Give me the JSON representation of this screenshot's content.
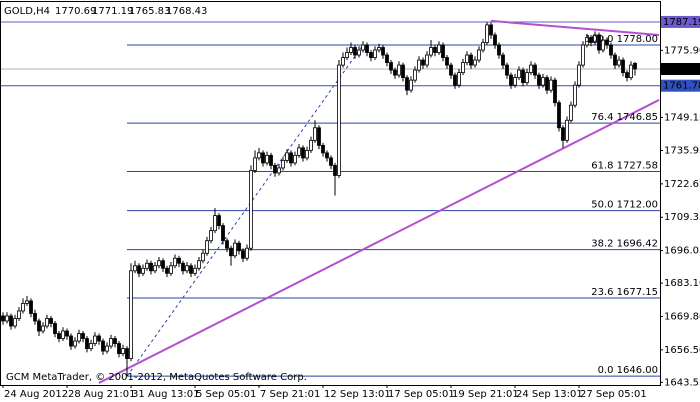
{
  "chart_data": {
    "type": "candlestick",
    "symbol": "GOLD,H4",
    "footer": "GCM MetaTrader, © 2001-2012, MetaQuotes Software Corp.",
    "bull_color": "#ffffff",
    "bear_color": "#000000",
    "xlim": [
      -0.75,
      164.25
    ],
    "ylim": [
      1642.48,
      1795.14
    ],
    "yticks": [
      {
        "value": 1775.9,
        "label": "1775.90"
      },
      1749.15,
      1735.95,
      1722.65,
      1709.35,
      1696.05,
      {
        "value": 1683.1,
        "label": "1683.10"
      },
      {
        "value": 1669.8,
        "label": "1669.80"
      },
      {
        "value": 1656.5,
        "label": "1656.50"
      },
      1643.55
    ],
    "hlines": [
      {
        "value": 1787.19,
        "color": "#6a5acd",
        "label_color": "#6a5acd",
        "text_color": "#ffffff"
      },
      {
        "value": 1768.43,
        "color": "#b0b0b0",
        "label_color": "#000000",
        "text_color": "#ffffff"
      },
      {
        "value": 1761.78,
        "color": "#3050c0",
        "label_color": "#3050c0",
        "text_color": "#ffffff"
      }
    ],
    "fibonacci": {
      "color": "#2a44a8",
      "anchors": [
        [
          31,
          1646
        ],
        [
          90,
          1778
        ]
      ],
      "levels": [
        {
          "label": "100.0 1778.00",
          "value": 1778
        },
        {
          "label": "76.4 1746.85",
          "value": 1746.85
        },
        {
          "label": "61.8 1727.58",
          "value": 1727.58
        },
        {
          "label": "50.0 1712.00",
          "value": 1712
        },
        {
          "label": "38.2 1696.42",
          "value": 1696.42
        },
        {
          "label": "23.6 1677.15",
          "value": 1677.15
        },
        {
          "label": "0.0 1646.00",
          "value": 1646
        }
      ]
    },
    "trendlines": [
      {
        "color": "#b44fd0",
        "points": [
          [
            24,
            1643.3
          ],
          [
            164,
            1756.1
          ]
        ]
      },
      {
        "color": "#b44fd0",
        "points": [
          [
            122,
            1787.6
          ],
          [
            164,
            1782
          ]
        ]
      }
    ],
    "categories": [
      "24 Aug 2012",
      null,
      null,
      null,
      null,
      null,
      null,
      null,
      null,
      null,
      null,
      null,
      null,
      null,
      null,
      null,
      "28 Aug 21:01",
      null,
      null,
      null,
      null,
      null,
      null,
      null,
      null,
      null,
      null,
      null,
      null,
      null,
      null,
      null,
      "31 Aug 13:01",
      null,
      null,
      null,
      null,
      null,
      null,
      null,
      null,
      null,
      null,
      null,
      null,
      null,
      null,
      null,
      "5 Sep 05:01",
      null,
      null,
      null,
      null,
      null,
      null,
      null,
      null,
      null,
      null,
      null,
      null,
      null,
      null,
      null,
      "7 Sep 21:01",
      null,
      null,
      null,
      null,
      null,
      null,
      null,
      null,
      null,
      null,
      null,
      null,
      null,
      null,
      null,
      "12 Sep 13:01",
      null,
      null,
      null,
      null,
      null,
      null,
      null,
      null,
      null,
      null,
      null,
      null,
      null,
      null,
      null,
      "17 Sep 05:01",
      null,
      null,
      null,
      null,
      null,
      null,
      null,
      null,
      null,
      null,
      null,
      null,
      null,
      null,
      null,
      "19 Sep 21:01",
      null,
      null,
      null,
      null,
      null,
      null,
      null,
      null,
      null,
      null,
      null,
      null,
      null,
      null,
      null,
      "24 Sep 13:01",
      null,
      null,
      null,
      null,
      null,
      null,
      null,
      null,
      null,
      null,
      null,
      null,
      null,
      null,
      null,
      "27 Sep 05:01",
      null,
      null,
      null,
      null,
      null,
      null,
      null,
      null,
      null,
      null,
      null,
      null,
      null,
      null
    ],
    "candles": [
      [
        1670,
        1671.5,
        1666.5,
        1668
      ],
      [
        1668,
        1671.5,
        1667,
        1670
      ],
      [
        1670,
        1671,
        1664.5,
        1666
      ],
      [
        1666,
        1670.5,
        1665,
        1669
      ],
      [
        1669,
        1673.5,
        1668,
        1672
      ],
      [
        1672,
        1677,
        1671,
        1675
      ],
      [
        1675,
        1678,
        1674,
        1676
      ],
      [
        1676,
        1677,
        1669.5,
        1671
      ],
      [
        1671,
        1672.5,
        1666.5,
        1668
      ],
      [
        1668,
        1669,
        1662,
        1664
      ],
      [
        1664,
        1667.5,
        1663,
        1666
      ],
      [
        1666,
        1670.5,
        1665,
        1669
      ],
      [
        1669,
        1670,
        1665.5,
        1667
      ],
      [
        1667,
        1668,
        1661.5,
        1663
      ],
      [
        1663,
        1664,
        1659.5,
        1661
      ],
      [
        1661,
        1665.5,
        1660,
        1664
      ],
      [
        1664,
        1665,
        1660.5,
        1662
      ],
      [
        1662,
        1663,
        1656.5,
        1658
      ],
      [
        1658,
        1661.5,
        1657,
        1660
      ],
      [
        1660,
        1664.5,
        1659,
        1663
      ],
      [
        1663,
        1664,
        1659.5,
        1661
      ],
      [
        1661,
        1662,
        1655.5,
        1657
      ],
      [
        1657,
        1660.5,
        1656,
        1659
      ],
      [
        1659,
        1663.5,
        1658,
        1662
      ],
      [
        1662,
        1663,
        1658.5,
        1660
      ],
      [
        1660,
        1661,
        1654.5,
        1656
      ],
      [
        1656,
        1659.5,
        1655,
        1658
      ],
      [
        1658,
        1662.5,
        1657,
        1661
      ],
      [
        1661,
        1662,
        1657.5,
        1659
      ],
      [
        1659,
        1660,
        1653.5,
        1655
      ],
      [
        1655,
        1658.5,
        1654,
        1657
      ],
      [
        1657,
        1658,
        1646,
        1653
      ],
      [
        1653,
        1691,
        1652,
        1688
      ],
      [
        1688,
        1692,
        1687,
        1690
      ],
      [
        1690,
        1691,
        1685.5,
        1687
      ],
      [
        1687,
        1690.5,
        1686,
        1689
      ],
      [
        1689,
        1692.5,
        1688,
        1691
      ],
      [
        1691,
        1692,
        1686.5,
        1688
      ],
      [
        1688,
        1691.5,
        1687,
        1690
      ],
      [
        1690,
        1693.5,
        1689,
        1692
      ],
      [
        1692,
        1693,
        1687.5,
        1689
      ],
      [
        1689,
        1690,
        1685.5,
        1687
      ],
      [
        1687,
        1691.5,
        1686,
        1690
      ],
      [
        1690,
        1694.5,
        1689,
        1693
      ],
      [
        1693,
        1694,
        1689.5,
        1691
      ],
      [
        1691,
        1692,
        1686.5,
        1688
      ],
      [
        1688,
        1691.5,
        1687,
        1690
      ],
      [
        1690,
        1691,
        1685.5,
        1687
      ],
      [
        1687,
        1690.5,
        1686,
        1689
      ],
      [
        1689,
        1693.5,
        1688,
        1692
      ],
      [
        1692,
        1696.5,
        1691,
        1695
      ],
      [
        1695,
        1701.5,
        1694,
        1700
      ],
      [
        1700,
        1705.5,
        1699,
        1704
      ],
      [
        1704,
        1713,
        1703,
        1710
      ],
      [
        1710,
        1711,
        1704.5,
        1706
      ],
      [
        1706,
        1707,
        1698.5,
        1700
      ],
      [
        1700,
        1701,
        1695.5,
        1697
      ],
      [
        1697,
        1698,
        1690,
        1694
      ],
      [
        1694,
        1700.5,
        1693,
        1699
      ],
      [
        1699,
        1700,
        1694.5,
        1696
      ],
      [
        1696,
        1697,
        1691.5,
        1693
      ],
      [
        1693,
        1698.5,
        1692,
        1697
      ],
      [
        1697,
        1730,
        1696,
        1728
      ],
      [
        1728,
        1736,
        1727,
        1733
      ],
      [
        1733,
        1737,
        1732,
        1735
      ],
      [
        1735,
        1736,
        1729.5,
        1731
      ],
      [
        1731,
        1735.5,
        1730,
        1734
      ],
      [
        1734,
        1735,
        1728.5,
        1730
      ],
      [
        1730,
        1731,
        1725.5,
        1727
      ],
      [
        1727,
        1730.5,
        1726,
        1729
      ],
      [
        1729,
        1733.5,
        1728,
        1732
      ],
      [
        1732,
        1736.5,
        1731,
        1735
      ],
      [
        1735,
        1736,
        1729.5,
        1731
      ],
      [
        1731,
        1735.5,
        1730,
        1734
      ],
      [
        1734,
        1738.5,
        1733,
        1737
      ],
      [
        1737,
        1738,
        1731.5,
        1733
      ],
      [
        1733,
        1737.5,
        1732,
        1736
      ],
      [
        1736,
        1741.5,
        1735,
        1740
      ],
      [
        1740,
        1748,
        1739,
        1745
      ],
      [
        1745,
        1746,
        1736.5,
        1738
      ],
      [
        1738,
        1739,
        1733.5,
        1735
      ],
      [
        1735,
        1736,
        1731.5,
        1733
      ],
      [
        1733,
        1734,
        1728.5,
        1730
      ],
      [
        1730,
        1731,
        1718,
        1726
      ],
      [
        1726,
        1772,
        1725,
        1770
      ],
      [
        1770,
        1775,
        1769,
        1773
      ],
      [
        1773,
        1777,
        1772,
        1775
      ],
      [
        1775,
        1779,
        1774,
        1777
      ],
      [
        1777,
        1778,
        1772.5,
        1774
      ],
      [
        1774,
        1777.5,
        1773,
        1776
      ],
      [
        1776,
        1779.5,
        1775,
        1778
      ],
      [
        1778,
        1779,
        1773.5,
        1775
      ],
      [
        1775,
        1776,
        1771.5,
        1773
      ],
      [
        1773,
        1777.5,
        1772,
        1776
      ],
      [
        1776,
        1778.5,
        1775,
        1777
      ],
      [
        1777,
        1778,
        1772.5,
        1774
      ],
      [
        1774,
        1775,
        1769.5,
        1771
      ],
      [
        1771,
        1772,
        1766.5,
        1768
      ],
      [
        1768,
        1769,
        1764.5,
        1766
      ],
      [
        1766,
        1771.5,
        1765,
        1770
      ],
      [
        1770,
        1771,
        1763.5,
        1765
      ],
      [
        1765,
        1766,
        1758,
        1760
      ],
      [
        1760,
        1765.5,
        1759,
        1764
      ],
      [
        1764,
        1769.5,
        1763,
        1768
      ],
      [
        1768,
        1773.5,
        1767,
        1772
      ],
      [
        1772,
        1773,
        1768.5,
        1770
      ],
      [
        1770,
        1775.5,
        1769,
        1774
      ],
      [
        1774,
        1780,
        1773,
        1777
      ],
      [
        1777,
        1778,
        1773.5,
        1775
      ],
      [
        1775,
        1779.5,
        1774,
        1778
      ],
      [
        1778,
        1779,
        1771.5,
        1773
      ],
      [
        1773,
        1774,
        1768.5,
        1770
      ],
      [
        1770,
        1771,
        1764.5,
        1766
      ],
      [
        1766,
        1767,
        1760.5,
        1762
      ],
      [
        1762,
        1768.5,
        1761,
        1767
      ],
      [
        1767,
        1772.5,
        1766,
        1771
      ],
      [
        1771,
        1775.5,
        1770,
        1774
      ],
      [
        1774,
        1775,
        1768.5,
        1770
      ],
      [
        1770,
        1773.5,
        1769,
        1772
      ],
      [
        1772,
        1777.5,
        1771,
        1776
      ],
      [
        1776,
        1780.5,
        1775,
        1779
      ],
      [
        1779,
        1787.19,
        1778,
        1786
      ],
      [
        1786,
        1787,
        1780.5,
        1782
      ],
      [
        1782,
        1783,
        1776.5,
        1778
      ],
      [
        1778,
        1779,
        1772.5,
        1774
      ],
      [
        1774,
        1775,
        1768.5,
        1770
      ],
      [
        1770,
        1771,
        1764.5,
        1766
      ],
      [
        1766,
        1767,
        1760.5,
        1762
      ],
      [
        1762,
        1766.5,
        1761,
        1765
      ],
      [
        1765,
        1769.5,
        1764,
        1768
      ],
      [
        1768,
        1769,
        1761.5,
        1763
      ],
      [
        1763,
        1768.5,
        1762,
        1767
      ],
      [
        1767,
        1771.5,
        1766,
        1770
      ],
      [
        1770,
        1771,
        1764.5,
        1766
      ],
      [
        1766,
        1767,
        1760.5,
        1762
      ],
      [
        1762,
        1766.5,
        1761,
        1765
      ],
      [
        1765,
        1766,
        1758.5,
        1760
      ],
      [
        1760,
        1765.5,
        1759,
        1764
      ],
      [
        1764,
        1765,
        1753.5,
        1755
      ],
      [
        1755,
        1756,
        1743.5,
        1745
      ],
      [
        1745,
        1746,
        1737,
        1740
      ],
      [
        1740,
        1749.5,
        1739,
        1748
      ],
      [
        1748,
        1755.5,
        1747,
        1754
      ],
      [
        1754,
        1763.5,
        1753,
        1762
      ],
      [
        1762,
        1771.5,
        1761,
        1770
      ],
      [
        1770,
        1779.5,
        1769,
        1778
      ],
      [
        1778,
        1782.5,
        1777,
        1781
      ],
      [
        1781,
        1782,
        1777.5,
        1779
      ],
      [
        1779,
        1783.5,
        1778,
        1782
      ],
      [
        1782,
        1783,
        1774.5,
        1776
      ],
      [
        1776,
        1781.5,
        1775,
        1780
      ],
      [
        1780,
        1781,
        1776.5,
        1778
      ],
      [
        1778,
        1779,
        1772.5,
        1774
      ],
      [
        1774,
        1775,
        1768.5,
        1770
      ],
      [
        1770,
        1773.5,
        1769,
        1772
      ],
      [
        1772,
        1773,
        1765.5,
        1767
      ],
      [
        1767,
        1768,
        1763.5,
        1765
      ],
      [
        1765,
        1771.5,
        1764,
        1770
      ],
      [
        1770.69,
        1771.19,
        1765.83,
        1768.43
      ]
    ]
  }
}
